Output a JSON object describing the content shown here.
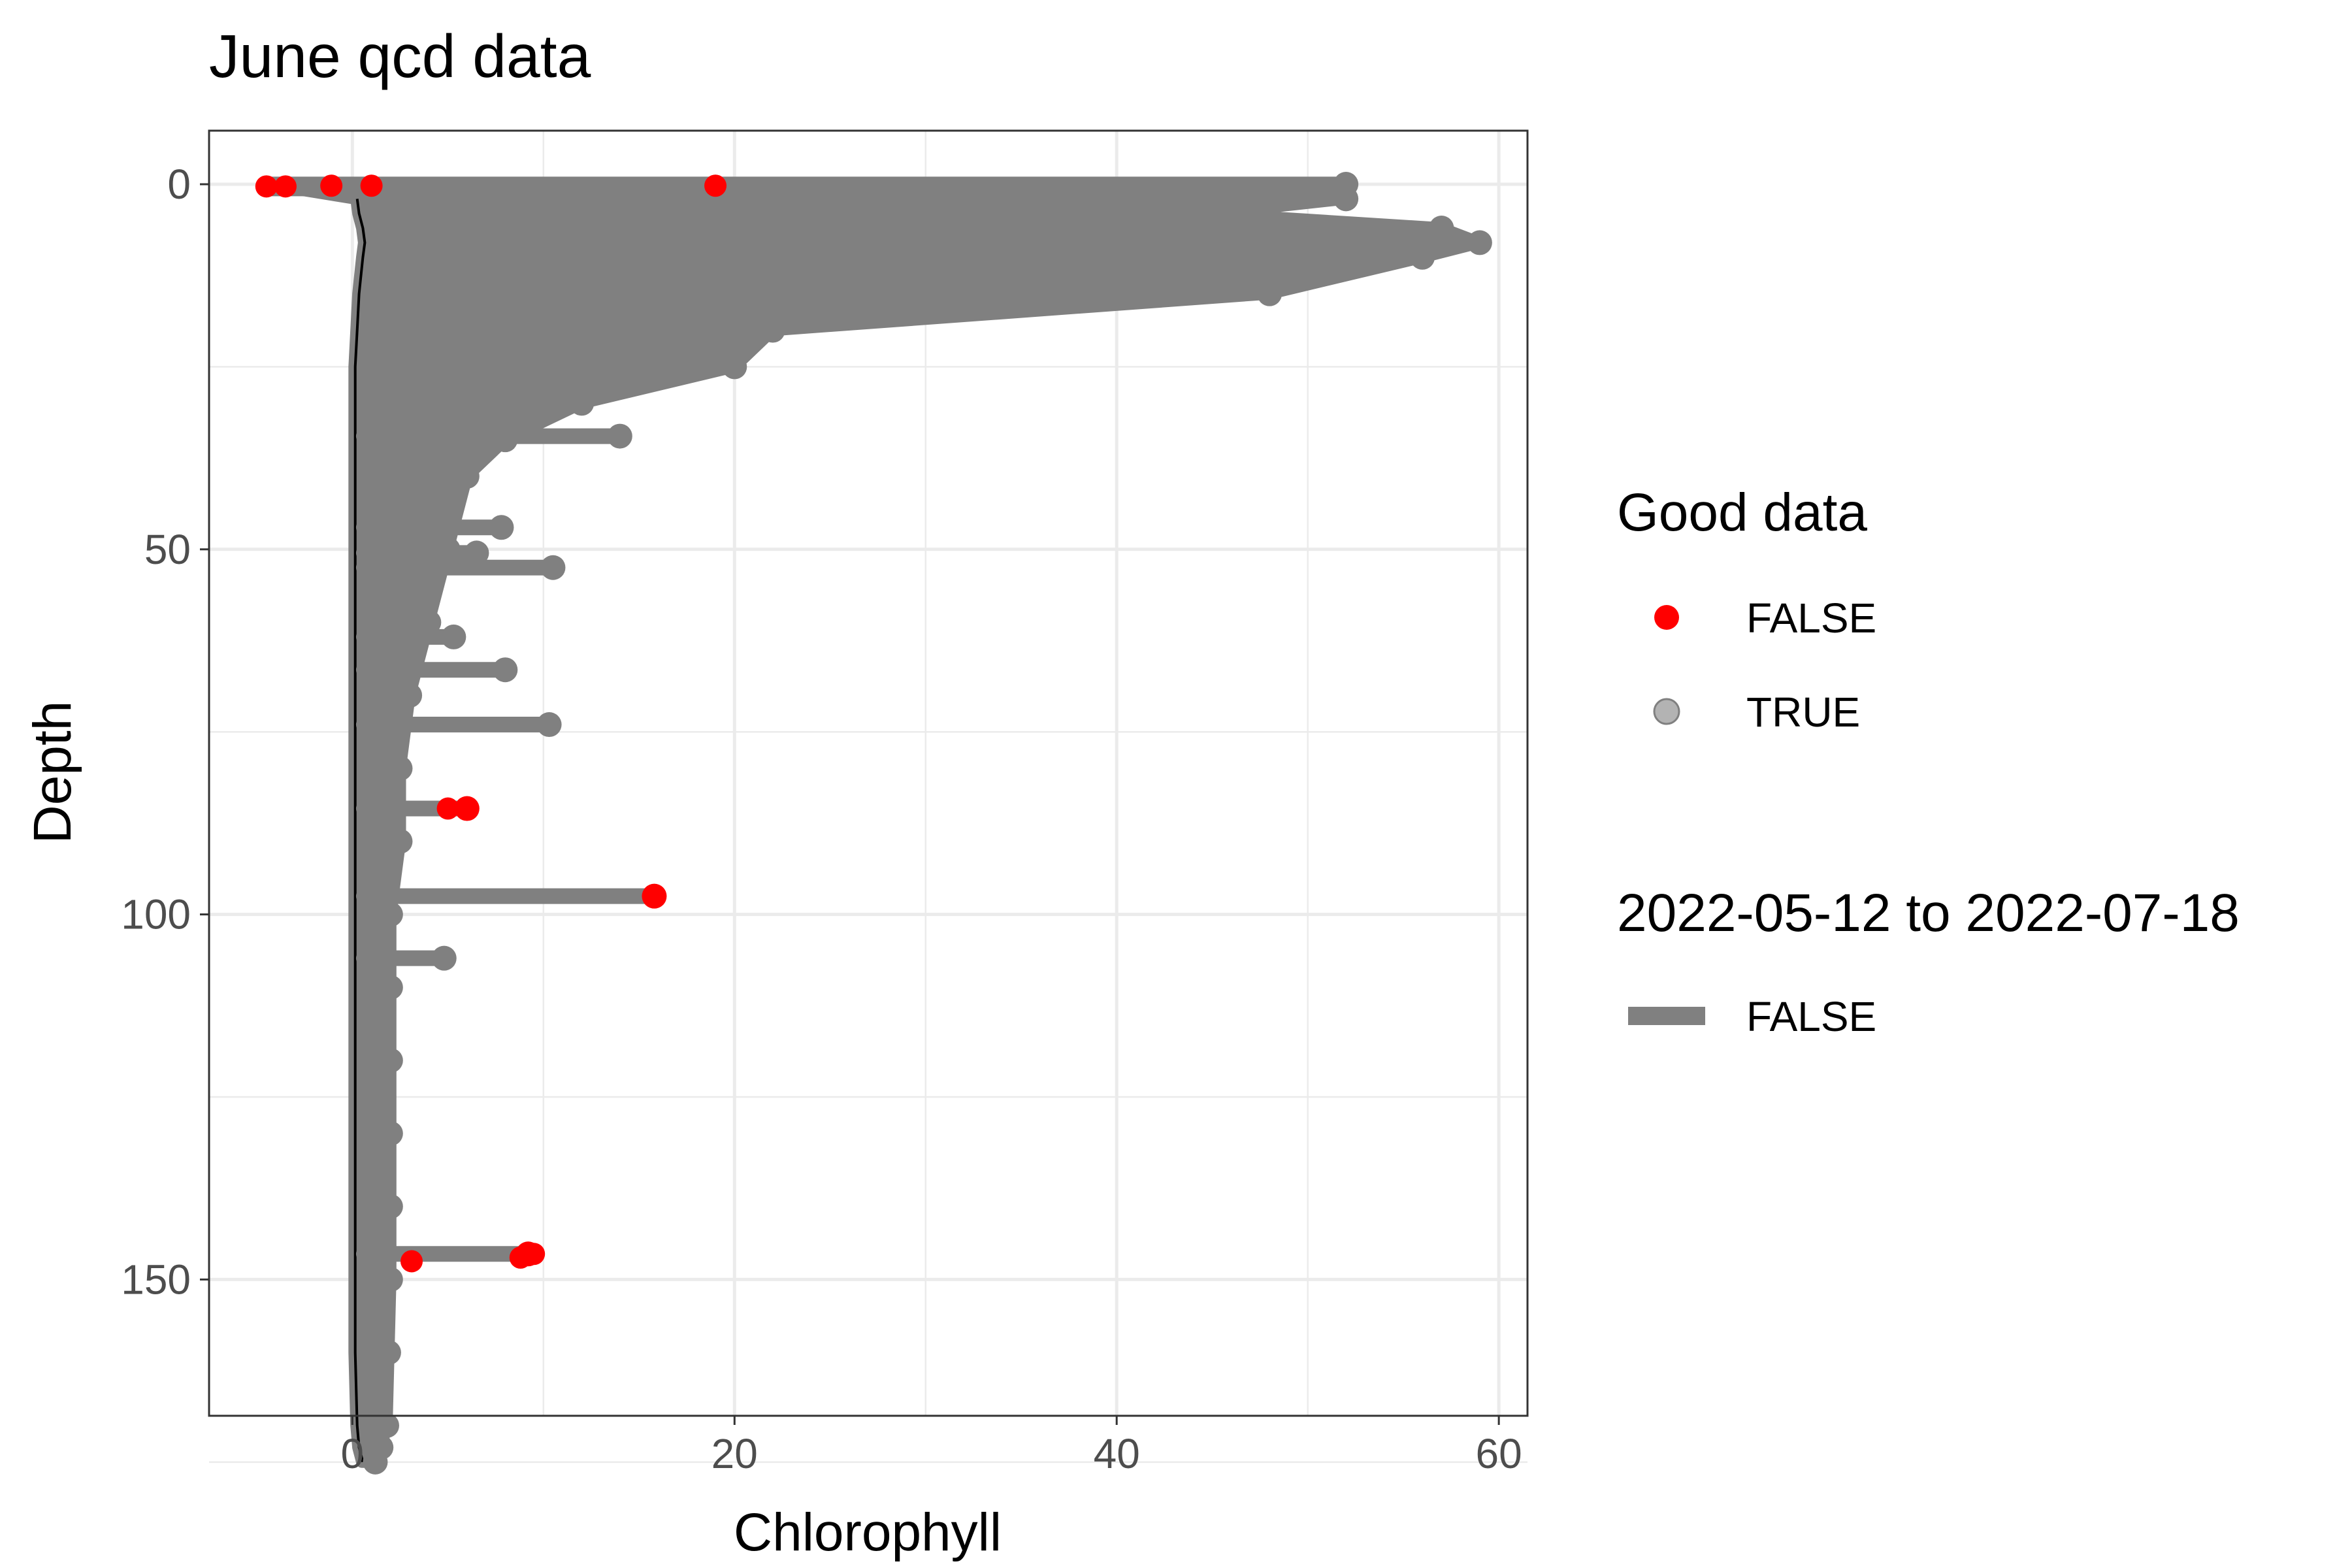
{
  "chart_data": {
    "type": "scatter",
    "title": "June qcd data",
    "xlabel": "Chlorophyll",
    "ylabel": "Depth",
    "xlim": [
      -7.5,
      61.5
    ],
    "ylim": [
      0,
      176
    ],
    "y_reversed": true,
    "grid": true,
    "legend_position": "right",
    "x_ticks": [
      0,
      20,
      40,
      60
    ],
    "x_tick_labels": [
      "0",
      "20",
      "40",
      "60"
    ],
    "y_ticks": [
      0,
      50,
      100,
      150
    ],
    "y_tick_labels": [
      "0",
      "50",
      "100",
      "150"
    ],
    "colors": {
      "good": "#808080",
      "bad": "#ff0000",
      "line": "#808080",
      "outline": "#000000",
      "grid": "#ebebeb",
      "panel_border": "#333333",
      "tick_text": "#4d4d4d"
    },
    "legend_points": {
      "title": "Good data",
      "entries": [
        {
          "label": "FALSE",
          "color": "#ff0000"
        },
        {
          "label": "TRUE",
          "color": "#808080"
        }
      ]
    },
    "legend_lines": {
      "title": "2022-05-12 to 2022-07-18",
      "entries": [
        {
          "label": "FALSE",
          "color": "#808080"
        }
      ]
    },
    "profile": {
      "depth": [
        0,
        2,
        4,
        6,
        8,
        10,
        15,
        20,
        25,
        30,
        35,
        40,
        50,
        60,
        70,
        80,
        90,
        100,
        110,
        120,
        130,
        140,
        150,
        160,
        170,
        173,
        175
      ],
      "max_chlorophyll": [
        52,
        52,
        45,
        57,
        59,
        56,
        48,
        22,
        20,
        12,
        8,
        6,
        5,
        4,
        3,
        2.5,
        2.5,
        2,
        2,
        2,
        2,
        2,
        2,
        1.9,
        1.8,
        1.5,
        1.2
      ],
      "min_chlorophyll": [
        -4.5,
        0.2,
        0.3,
        0.5,
        0.6,
        0.5,
        0.3,
        0.2,
        0.1,
        0.1,
        0.1,
        0.1,
        0.1,
        0.1,
        0.1,
        0.1,
        0.1,
        0.1,
        0.1,
        0.1,
        0.1,
        0.1,
        0.1,
        0.1,
        0.2,
        0.3,
        0.5
      ]
    },
    "spikes": [
      {
        "depth": 34.5,
        "chlorophyll": 14,
        "good": true
      },
      {
        "depth": 47,
        "chlorophyll": 7.8,
        "good": true
      },
      {
        "depth": 50.5,
        "chlorophyll": 6.5,
        "good": true
      },
      {
        "depth": 52.5,
        "chlorophyll": 10.5,
        "good": true
      },
      {
        "depth": 62,
        "chlorophyll": 5.3,
        "good": true
      },
      {
        "depth": 66.5,
        "chlorophyll": 8,
        "good": true
      },
      {
        "depth": 74,
        "chlorophyll": 10.3,
        "good": true
      },
      {
        "depth": 85.5,
        "chlorophyll": 6,
        "good": false
      },
      {
        "depth": 97.5,
        "chlorophyll": 15.8,
        "good": false
      },
      {
        "depth": 106,
        "chlorophyll": 4.8,
        "good": true
      },
      {
        "depth": 146.5,
        "chlorophyll": 9.2,
        "good": false
      }
    ],
    "bad_points": [
      {
        "depth": 0.3,
        "chlorophyll": -4.5
      },
      {
        "depth": 0.3,
        "chlorophyll": -3.5
      },
      {
        "depth": 0.2,
        "chlorophyll": -1.1
      },
      {
        "depth": 0.2,
        "chlorophyll": 1
      },
      {
        "depth": 0.2,
        "chlorophyll": 19
      },
      {
        "depth": 85.5,
        "chlorophyll": 6
      },
      {
        "depth": 85.5,
        "chlorophyll": 5
      },
      {
        "depth": 97.5,
        "chlorophyll": 15.8
      },
      {
        "depth": 146.5,
        "chlorophyll": 9.5
      },
      {
        "depth": 147,
        "chlorophyll": 8.8
      },
      {
        "depth": 147.5,
        "chlorophyll": 3.1
      }
    ]
  }
}
